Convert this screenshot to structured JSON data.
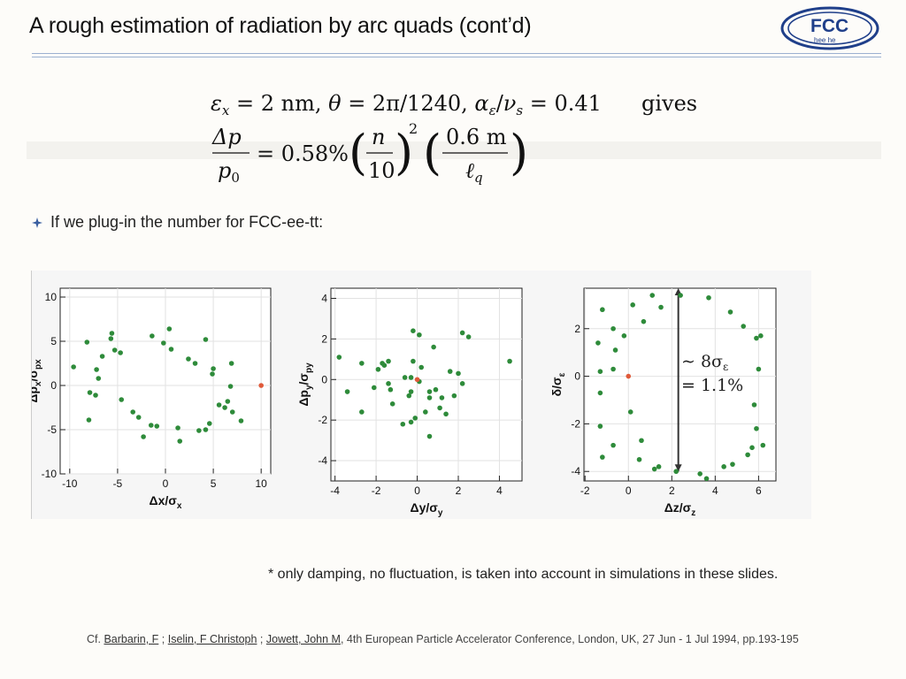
{
  "slide": {
    "title": "A rough estimation of radiation by arc quads (cont’d)"
  },
  "logo": {
    "big": "FCC",
    "small": "hee he"
  },
  "formula": {
    "line1": {
      "eps": "ε",
      "eps_sub": "x",
      "eq1": " = 2 nm, ",
      "theta": "θ",
      "eq2": " = 2π/1240, ",
      "alpha": "α",
      "alpha_sub": "ε",
      "slash": "/",
      "nu": "ν",
      "nu_sub": "s",
      "eq3": " = 0.41",
      "gives": "gives"
    },
    "line2": {
      "dp": "Δp",
      "p0": "p",
      "p0_sub": "0",
      "eq": "= 0.58%",
      "n": "n",
      "ten": "10",
      "exp": "2",
      "num2": "0.6 m",
      "lq": "ℓ",
      "lq_sub": "q"
    }
  },
  "bullet": {
    "text": "If we plug-in the number for FCC-ee-tt:"
  },
  "plots": {
    "annotation": {
      "line1": "∼ 8σ",
      "line1_sub": "ε",
      "line2": "= 1.1%"
    }
  },
  "chart_data": [
    {
      "type": "scatter",
      "xlabel": "Δx/σ",
      "xlabel_sub": "x",
      "ylabel": "Δp",
      "ylabel_sub1": "x",
      "ylabel_mid": "/σ",
      "ylabel_sub2": "px",
      "xlim": [
        -11,
        11
      ],
      "ylim": [
        -10,
        11
      ],
      "xticks": [
        -10,
        -5,
        0,
        5,
        10
      ],
      "yticks": [
        -10,
        -5,
        0,
        5,
        10
      ],
      "color": "#2e8b3a",
      "highlight_color": "#e05a3a",
      "highlight": [
        {
          "x": 10,
          "y": 0
        }
      ],
      "points": [
        [
          -9.6,
          2.1
        ],
        [
          -8.2,
          4.9
        ],
        [
          -7.2,
          1.8
        ],
        [
          -7.0,
          0.8
        ],
        [
          -7.3,
          -1.1
        ],
        [
          -6.6,
          3.3
        ],
        [
          -5.7,
          5.3
        ],
        [
          -5.6,
          5.9
        ],
        [
          -5.3,
          4.0
        ],
        [
          -4.7,
          3.7
        ],
        [
          -4.6,
          -1.6
        ],
        [
          -3.4,
          -3.0
        ],
        [
          -2.8,
          -3.6
        ],
        [
          -2.3,
          -5.8
        ],
        [
          -1.5,
          -4.5
        ],
        [
          -0.9,
          -4.6
        ],
        [
          -1.4,
          5.6
        ],
        [
          -0.2,
          4.8
        ],
        [
          0.4,
          6.4
        ],
        [
          0.6,
          4.1
        ],
        [
          1.3,
          -4.8
        ],
        [
          1.5,
          -6.3
        ],
        [
          2.4,
          3.0
        ],
        [
          3.1,
          2.5
        ],
        [
          3.5,
          -5.1
        ],
        [
          4.2,
          -5.0
        ],
        [
          4.2,
          5.2
        ],
        [
          4.6,
          -4.3
        ],
        [
          5.0,
          1.9
        ],
        [
          5.6,
          -2.2
        ],
        [
          6.2,
          -2.5
        ],
        [
          6.5,
          -1.8
        ],
        [
          7.0,
          -3.0
        ],
        [
          6.8,
          -0.1
        ],
        [
          7.9,
          -4.0
        ],
        [
          6.9,
          2.5
        ],
        [
          4.9,
          1.3
        ],
        [
          -8.0,
          -3.9
        ],
        [
          -7.9,
          -0.8
        ]
      ]
    },
    {
      "type": "scatter",
      "xlabel": "Δy/σ",
      "xlabel_sub": "y",
      "ylabel": "Δp",
      "ylabel_sub1": "y",
      "ylabel_mid": "/σ",
      "ylabel_sub2": "py",
      "xlim": [
        -4.2,
        5.1
      ],
      "ylim": [
        -5,
        4.5
      ],
      "xticks": [
        -4,
        -2,
        0,
        2,
        4
      ],
      "yticks": [
        -4,
        -2,
        0,
        2,
        4
      ],
      "color": "#2e8b3a",
      "highlight_color": "#e05a3a",
      "highlight": [
        {
          "x": 0,
          "y": 0
        }
      ],
      "points": [
        [
          -3.8,
          1.1
        ],
        [
          -3.4,
          -0.6
        ],
        [
          -2.7,
          0.8
        ],
        [
          -2.7,
          -1.6
        ],
        [
          -2.1,
          -0.4
        ],
        [
          -1.9,
          0.5
        ],
        [
          -1.7,
          0.8
        ],
        [
          -1.6,
          0.7
        ],
        [
          -1.4,
          0.9
        ],
        [
          -1.4,
          -0.2
        ],
        [
          -1.2,
          -1.2
        ],
        [
          -1.3,
          -0.5
        ],
        [
          -0.7,
          -2.2
        ],
        [
          -0.3,
          0.1
        ],
        [
          -0.4,
          -0.8
        ],
        [
          -0.3,
          -0.6
        ],
        [
          -0.2,
          0.9
        ],
        [
          -0.3,
          -2.1
        ],
        [
          -0.1,
          -1.9
        ],
        [
          -0.2,
          2.4
        ],
        [
          0.1,
          -0.1
        ],
        [
          0.1,
          2.2
        ],
        [
          0.2,
          0.6
        ],
        [
          0.4,
          -1.6
        ],
        [
          0.6,
          -0.6
        ],
        [
          0.6,
          -0.9
        ],
        [
          0.8,
          1.6
        ],
        [
          0.9,
          -0.5
        ],
        [
          1.1,
          -1.4
        ],
        [
          1.2,
          -0.9
        ],
        [
          1.4,
          -1.7
        ],
        [
          1.6,
          0.4
        ],
        [
          1.8,
          -0.8
        ],
        [
          2.0,
          0.3
        ],
        [
          2.2,
          -0.2
        ],
        [
          2.2,
          2.3
        ],
        [
          2.5,
          2.1
        ],
        [
          4.5,
          0.9
        ],
        [
          -0.6,
          0.1
        ],
        [
          0.6,
          -2.8
        ]
      ]
    },
    {
      "type": "scatter",
      "xlabel": "Δz/σ",
      "xlabel_sub": "z",
      "ylabel": "δ/σ",
      "ylabel_sub1": "ε",
      "xlim": [
        -2.05,
        6.8
      ],
      "ylim": [
        -4.4,
        3.7
      ],
      "xticks": [
        -2,
        0,
        2,
        4,
        6
      ],
      "yticks": [
        -4,
        -2,
        0,
        2
      ],
      "color": "#2e8b3a",
      "highlight_color": "#e05a3a",
      "highlight": [
        {
          "x": 0,
          "y": 0
        }
      ],
      "points": [
        [
          -1.2,
          2.8
        ],
        [
          -1.4,
          1.4
        ],
        [
          -1.3,
          0.2
        ],
        [
          -1.3,
          -0.7
        ],
        [
          -1.3,
          -2.1
        ],
        [
          -1.2,
          -3.4
        ],
        [
          -0.7,
          2.0
        ],
        [
          -0.6,
          1.1
        ],
        [
          -0.7,
          0.3
        ],
        [
          -0.7,
          -2.9
        ],
        [
          -0.2,
          1.7
        ],
        [
          0.1,
          -1.5
        ],
        [
          0.2,
          3.0
        ],
        [
          0.5,
          -3.5
        ],
        [
          0.6,
          -2.7
        ],
        [
          0.7,
          2.3
        ],
        [
          1.1,
          3.4
        ],
        [
          1.2,
          -3.9
        ],
        [
          1.4,
          -3.8
        ],
        [
          1.5,
          2.9
        ],
        [
          2.2,
          -4.0
        ],
        [
          2.4,
          3.4
        ],
        [
          3.3,
          -4.1
        ],
        [
          3.6,
          -4.3
        ],
        [
          4.4,
          -3.8
        ],
        [
          4.8,
          -3.7
        ],
        [
          4.7,
          2.7
        ],
        [
          5.3,
          2.1
        ],
        [
          5.9,
          1.6
        ],
        [
          6.0,
          0.3
        ],
        [
          5.8,
          -1.2
        ],
        [
          5.9,
          -2.2
        ],
        [
          5.7,
          -3.0
        ],
        [
          5.5,
          -3.3
        ],
        [
          6.2,
          -2.9
        ],
        [
          3.7,
          3.3
        ],
        [
          6.1,
          1.7
        ]
      ],
      "arrow": {
        "x": 2.3,
        "y_from": -4.0,
        "y_to": 3.7
      }
    }
  ],
  "footnote": {
    "text": "* only damping, no fluctuation, is taken into account in simulations in these slides."
  },
  "citation": {
    "prefix": "Cf. ",
    "author1": "Barbarin, F",
    "sep1": " ; ",
    "author2": "Iselin, F Christoph",
    "sep2": " ; ",
    "author3": "Jowett, John M",
    "rest": ", 4th European Particle Accelerator Conference, London, UK, 27 Jun - 1 Jul 1994, pp.193-195"
  }
}
